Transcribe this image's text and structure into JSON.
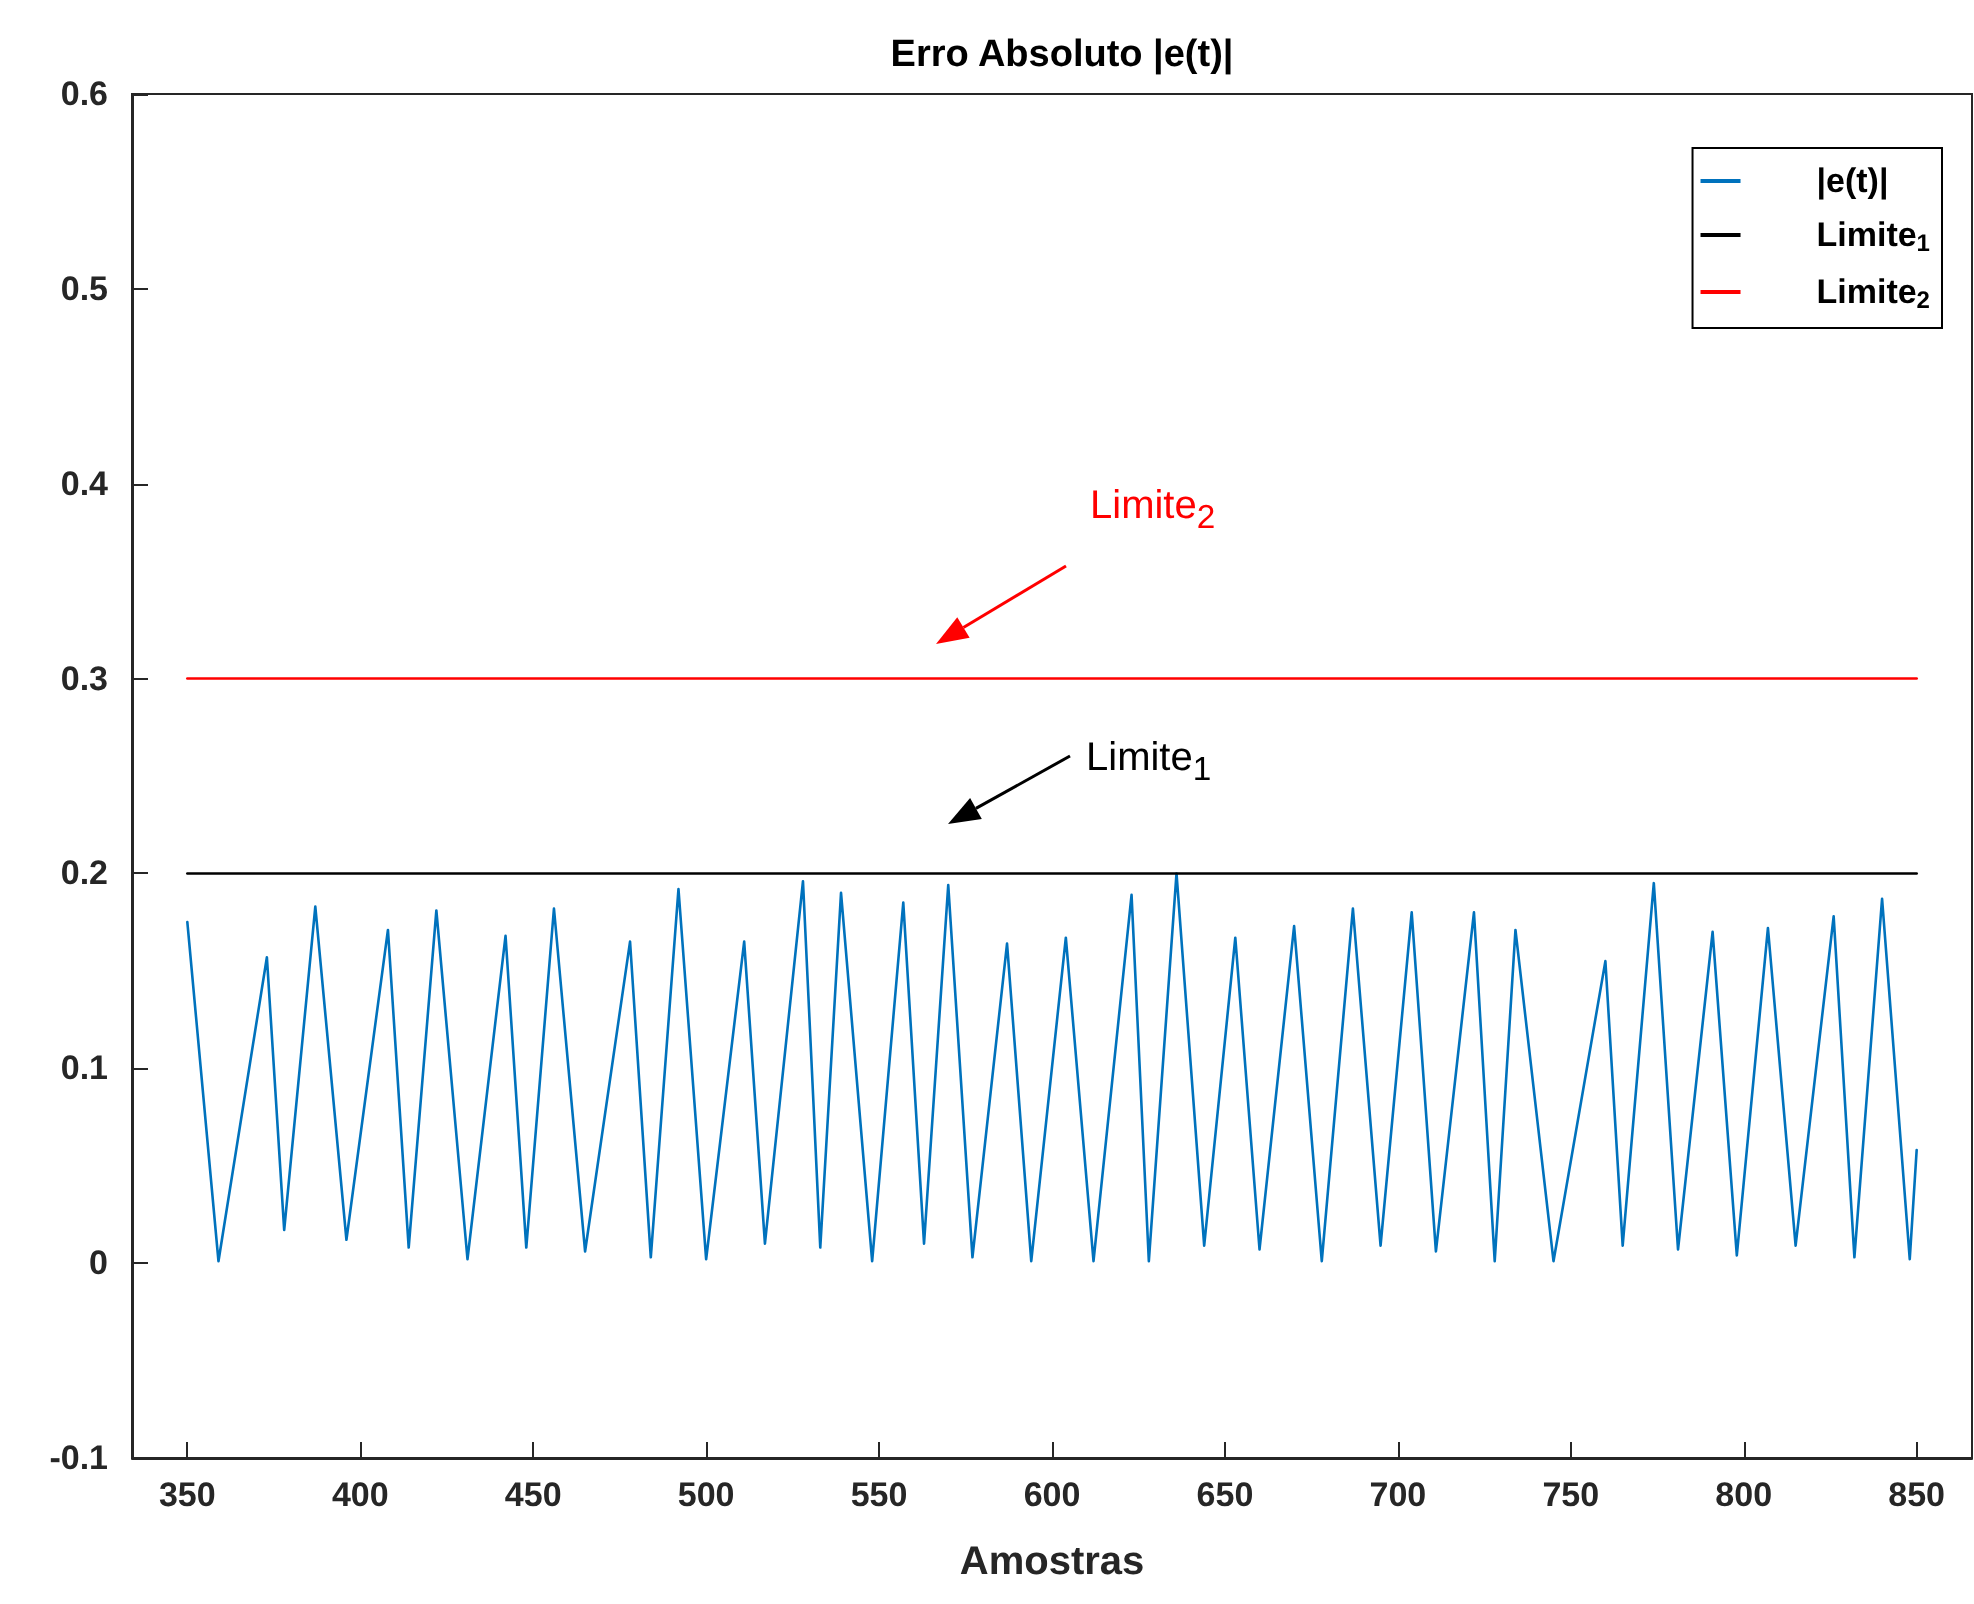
{
  "chart_data": {
    "type": "line",
    "title": "Erro Absoluto |e(t)|",
    "xlabel": "Amostras",
    "xlim": [
      334,
      866
    ],
    "xticks": [
      350,
      400,
      450,
      500,
      550,
      600,
      650,
      700,
      750,
      800,
      850
    ],
    "ylim": [
      -0.1,
      0.6
    ],
    "yticks": [
      -0.1,
      0,
      0.1,
      0.2,
      0.3,
      0.4,
      0.5,
      0.6
    ],
    "grid": false,
    "legend": "top right",
    "marker": "none",
    "line_style": "solid",
    "series": [
      {
        "name": "|e(t)|",
        "color": "#0072bd",
        "x": [
          350,
          359,
          373,
          378,
          387,
          396,
          408,
          414,
          422,
          431,
          442,
          448,
          456,
          465,
          478,
          484,
          492,
          500,
          511,
          517,
          528,
          533,
          539,
          548,
          557,
          563,
          570,
          577,
          587,
          594,
          604,
          612,
          623,
          628,
          636,
          644,
          653,
          660,
          670,
          678,
          687,
          695,
          704,
          711,
          722,
          728,
          734,
          745,
          760,
          765,
          774,
          781,
          791,
          798,
          807,
          815,
          826,
          832,
          840,
          848,
          850
        ],
        "values": [
          0.175,
          0.001,
          0.157,
          0.017,
          0.183,
          0.012,
          0.171,
          0.008,
          0.181,
          0.002,
          0.168,
          0.008,
          0.182,
          0.006,
          0.165,
          0.003,
          0.192,
          0.002,
          0.165,
          0.01,
          0.196,
          0.008,
          0.19,
          0.001,
          0.185,
          0.01,
          0.194,
          0.003,
          0.164,
          0.001,
          0.167,
          0.001,
          0.189,
          0.001,
          0.2,
          0.009,
          0.167,
          0.007,
          0.173,
          0.001,
          0.182,
          0.009,
          0.18,
          0.006,
          0.18,
          0.001,
          0.171,
          0.001,
          0.155,
          0.009,
          0.195,
          0.007,
          0.17,
          0.004,
          0.172,
          0.009,
          0.178,
          0.003,
          0.187,
          0.002,
          0.058
        ]
      },
      {
        "name": "Limite$_{1}$",
        "color": "#000000",
        "x": [
          350,
          850
        ],
        "values": [
          0.2,
          0.2
        ]
      },
      {
        "name": "Limite$_{2}$",
        "color": "#ff0000",
        "x": [
          350,
          850
        ],
        "values": [
          0.3,
          0.3
        ]
      }
    ],
    "annotations": [
      "Limite$_{2}$",
      "Limite$_{1}$"
    ]
  }
}
